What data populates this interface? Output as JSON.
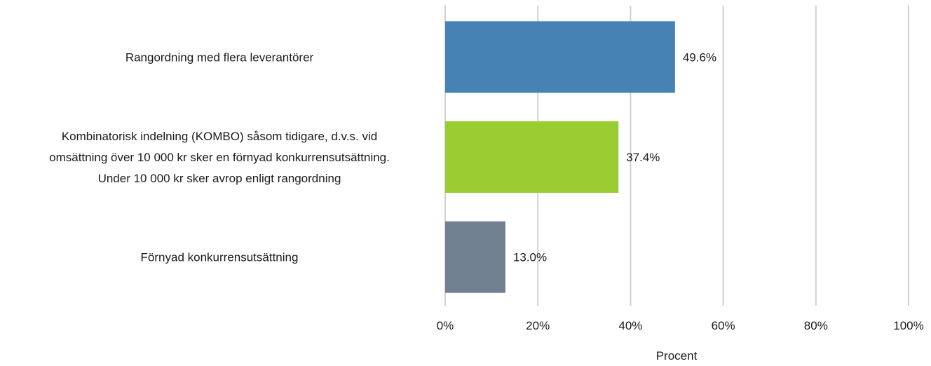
{
  "chart_data": {
    "type": "bar",
    "orientation": "horizontal",
    "categories": [
      [
        "Rangordning med flera leverantörer"
      ],
      [
        "Kombinatorisk indelning (KOMBO) såsom tidigare, d.v.s. vid",
        "omsättning över 10 000 kr sker en förnyad konkurrensutsättning.",
        "Under 10 000 kr sker avrop enligt rangordning"
      ],
      [
        "Förnyad konkurrensutsättning"
      ]
    ],
    "values": [
      49.6,
      37.4,
      13.0
    ],
    "value_labels": [
      "49.6%",
      "37.4%",
      "13.0%"
    ],
    "colors": [
      "#4682b4",
      "#9acd32",
      "#708090"
    ],
    "xlabel": "Procent",
    "xlim": [
      0,
      100
    ],
    "xticks": [
      0,
      20,
      40,
      60,
      80,
      100
    ],
    "xtick_labels": [
      "0%",
      "20%",
      "40%",
      "60%",
      "80%",
      "100%"
    ],
    "grid": true,
    "legend": "none"
  }
}
